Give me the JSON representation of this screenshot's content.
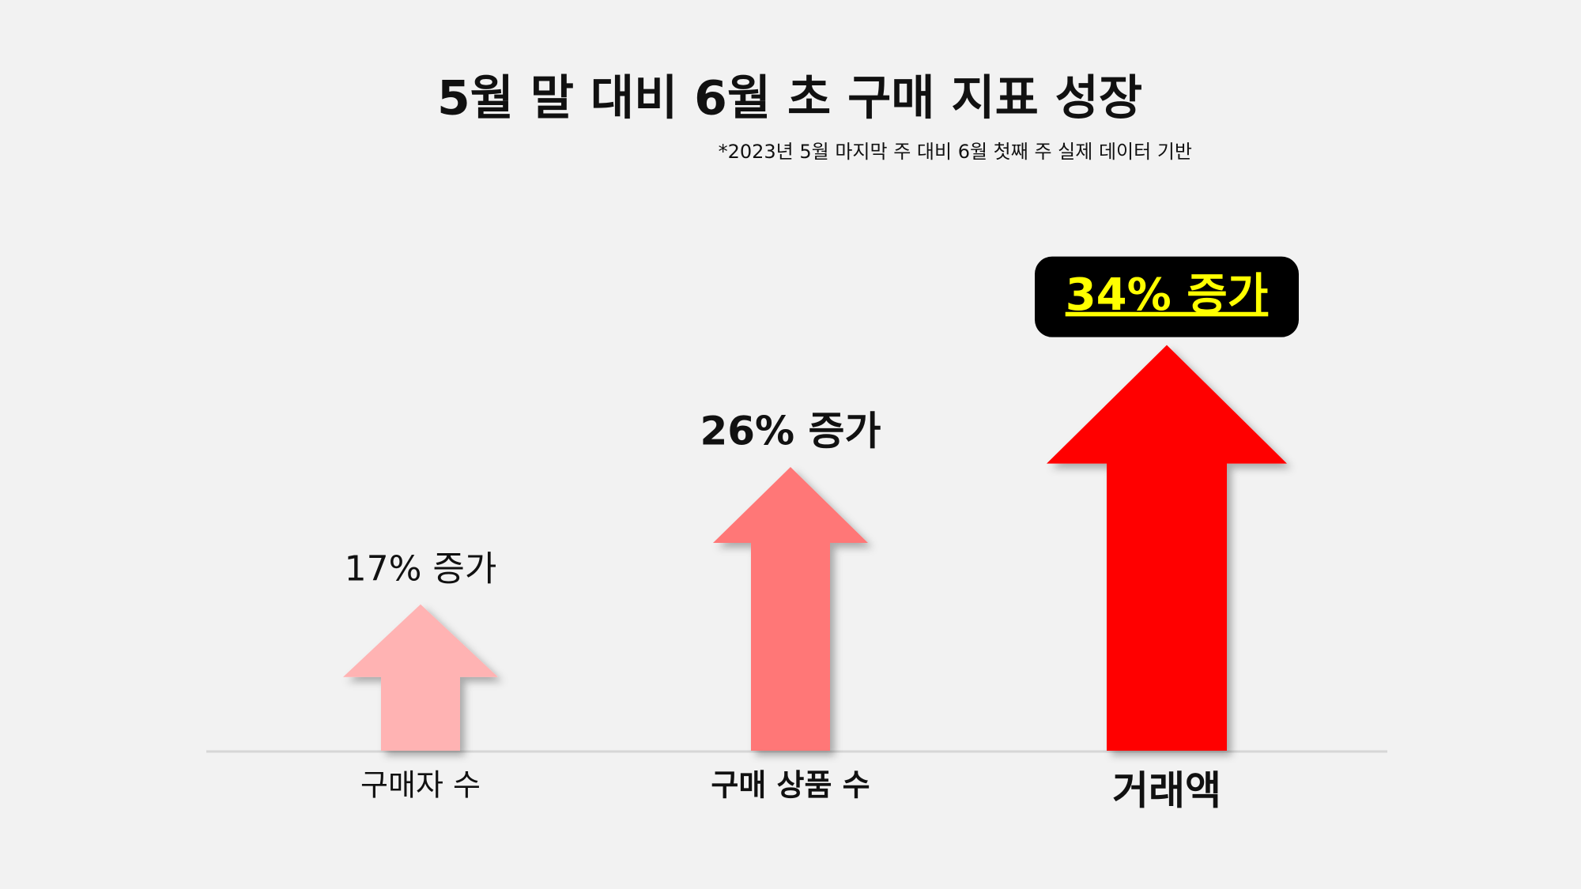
{
  "chart_data": {
    "type": "arrow",
    "title": "5월 말 대비 6월 초 구매 지표 성장",
    "subtitle": "*2023년 5월 마지막 주 대비 6월 첫째 주 실제 데이터 기반",
    "categories": [
      "구매자 수",
      "구매 상품 수",
      "거래액"
    ],
    "values": [
      17,
      26,
      34
    ],
    "value_labels": [
      "17% 증가",
      "26% 증가",
      "34% 증가"
    ],
    "colors": [
      "#ffb3b3",
      "#ff7777",
      "#ff0000"
    ]
  }
}
